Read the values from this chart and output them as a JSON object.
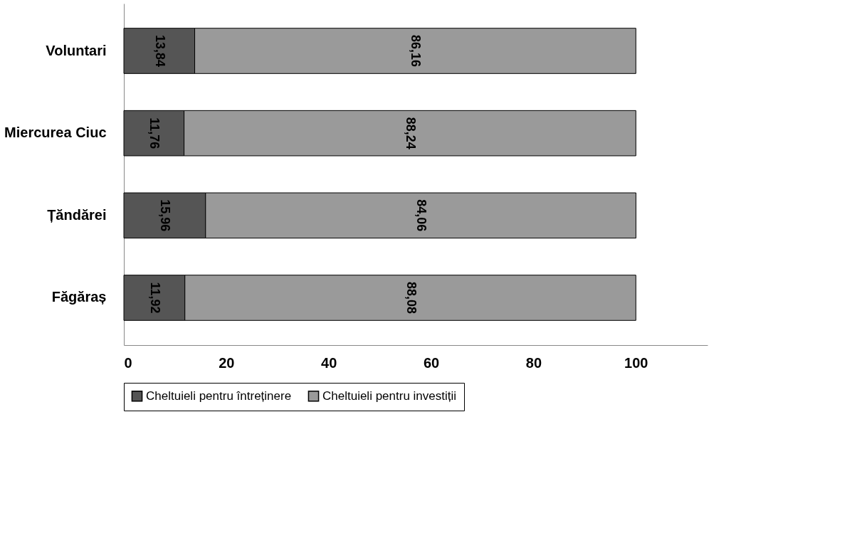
{
  "chart_data": {
    "type": "bar",
    "orientation": "horizontal",
    "stacked": true,
    "categories": [
      "Voluntari",
      "Miercurea Ciuc",
      "Țăndărei",
      "Făgăraș"
    ],
    "series": [
      {
        "name": "Cheltuieli pentru întreținere",
        "color": "#555555",
        "values": [
          13.84,
          11.76,
          15.96,
          11.92
        ],
        "value_labels": [
          "13,84",
          "11,76",
          "15,96",
          "11,92"
        ]
      },
      {
        "name": "Cheltuieli pentru investiții",
        "color": "#9a9a9a",
        "values": [
          86.16,
          88.24,
          84.06,
          88.08
        ],
        "value_labels": [
          "86,16",
          "88,24",
          "84,06",
          "88,08"
        ]
      }
    ],
    "xlim": [
      0,
      114
    ],
    "xticks": [
      0,
      20,
      40,
      60,
      80,
      100
    ],
    "grid": false,
    "legend": "bottom"
  }
}
